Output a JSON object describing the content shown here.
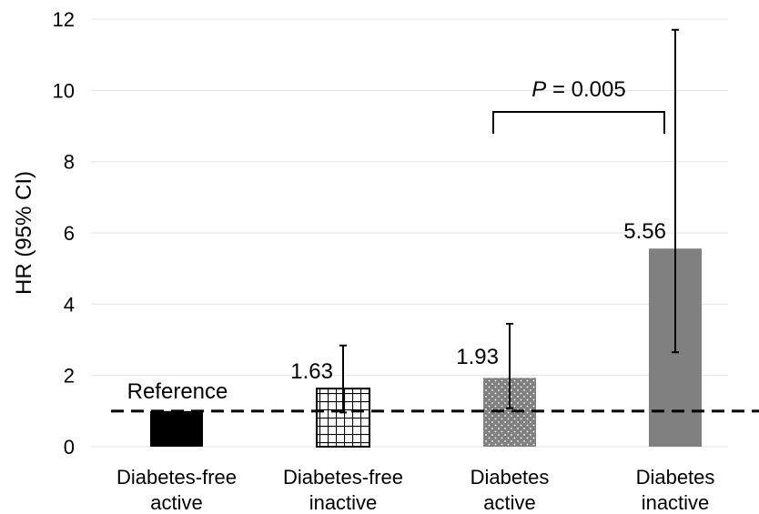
{
  "chart_data": {
    "type": "bar",
    "title": "",
    "xlabel": "",
    "ylabel": "HR (95% CI)",
    "ylim": [
      0,
      12
    ],
    "yticks": [
      0,
      2,
      4,
      6,
      8,
      10,
      12
    ],
    "grid": true,
    "categories": [
      [
        "Diabetes-free",
        "active"
      ],
      [
        "Diabetes-free",
        "inactive"
      ],
      [
        "Diabetes",
        "active"
      ],
      [
        "Diabetes",
        "inactive"
      ]
    ],
    "values": [
      1.0,
      1.63,
      1.93,
      5.56
    ],
    "ci_lower": [
      null,
      0.96,
      1.08,
      2.65
    ],
    "ci_upper": [
      null,
      2.84,
      3.45,
      11.7
    ],
    "data_labels": [
      "Reference",
      "1.63",
      "1.93",
      "5.56"
    ],
    "bar_fills": [
      "solid-black",
      "grid-hatch",
      "dotted-gray",
      "solid-gray"
    ],
    "colors": {
      "black": "#000000",
      "gray": "#808080",
      "grid": "#e3e3e3"
    },
    "reference_line": 1.0,
    "annotation": {
      "p_symbol": "P",
      "p_rest": " = 0.005",
      "between": [
        2,
        3
      ]
    }
  }
}
